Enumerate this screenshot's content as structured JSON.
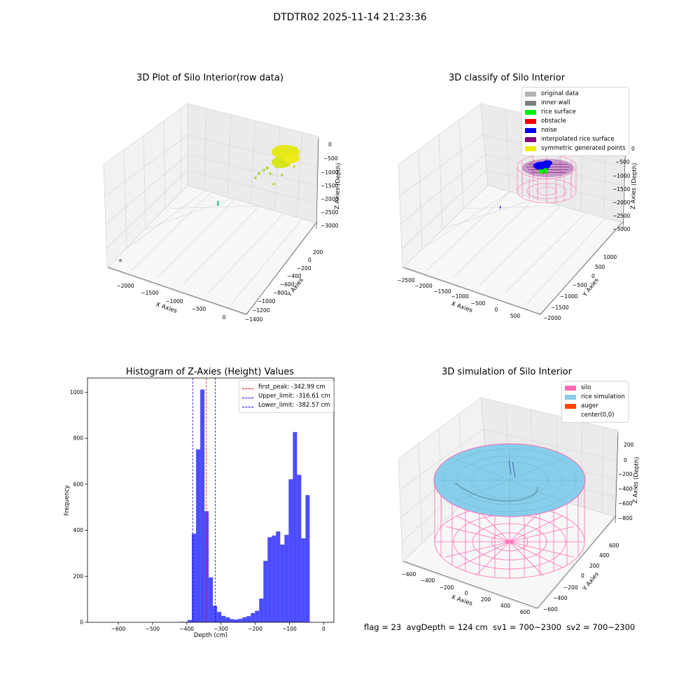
{
  "suptitle": "DTDTR02 2025-11-14 21:23:36",
  "chart_data": [
    {
      "type": "scatter",
      "title": "3D Plot of Silo Interior(row data)",
      "xlabel": "X Axies",
      "ylabel": "Y Axies",
      "zlabel": "Z Axies (Depth)",
      "x_ticks": [
        "−2000",
        "−1500",
        "−1000",
        "−500",
        "0"
      ],
      "y_ticks": [
        "200",
        "0",
        "−200",
        "−400",
        "−600",
        "−800",
        "−1000",
        "−1200",
        "−1400"
      ],
      "z_ticks": [
        "0",
        "−500",
        "−1000",
        "−1500",
        "−2000",
        "−2500",
        "−3000"
      ],
      "xlim": [
        -2300,
        100
      ],
      "ylim": [
        -1400,
        300
      ],
      "zlim": [
        -3300,
        100
      ],
      "point_clusters": [
        {
          "description": "dense surface cluster",
          "x": [
            -50,
            60
          ],
          "y": [
            -300,
            150
          ],
          "z": [
            -150,
            -800
          ],
          "color": "#e8e817"
        },
        {
          "description": "scattered points",
          "x": [
            -200,
            0
          ],
          "y": [
            -800,
            -200
          ],
          "z": [
            -500,
            -1600
          ],
          "color": "#a9dc36"
        },
        {
          "description": "small cluster",
          "x": [
            -1000,
            -950
          ],
          "y": [
            -1200,
            -1100
          ],
          "z": [
            -2100,
            -2200
          ],
          "color": "#5ec79b"
        },
        {
          "description": "far point",
          "x": -2200,
          "y": -1300,
          "z": -3000,
          "color": "#808080"
        }
      ]
    },
    {
      "type": "scatter",
      "title": "3D classify of Silo Interior",
      "xlabel": "X Axies",
      "ylabel": "Y Axies",
      "zlabel": "Z Axies (Depth)",
      "x_ticks": [
        "−2500",
        "−2000",
        "−1500",
        "−1000",
        "−500",
        "0",
        "500"
      ],
      "y_ticks": [
        "1000",
        "500",
        "0",
        "−500",
        "−1000",
        "−1500",
        "−2000"
      ],
      "z_ticks": [
        "0",
        "−500",
        "−1000",
        "−1500",
        "−2000",
        "−2500",
        "−3000"
      ],
      "legend": [
        {
          "label": "original data",
          "color": "#b3b3b3"
        },
        {
          "label": "inner wall",
          "color": "#808080"
        },
        {
          "label": "rice surface",
          "color": "#00ee00"
        },
        {
          "label": "obstacle",
          "color": "#ee0000"
        },
        {
          "label": "noise",
          "color": "#0000ee"
        },
        {
          "label": "interpolated rice surface",
          "color": "#800080"
        },
        {
          "label": "symmetric generated points",
          "color": "#eeee00"
        }
      ]
    },
    {
      "type": "bar",
      "title": "Histogram of Z-Axies (Height) Values",
      "xlabel": "Depth (cm)",
      "ylabel": "Frequency",
      "xlim": [
        -690,
        30
      ],
      "ylim": [
        0,
        1062
      ],
      "x_ticks": [
        -600,
        -500,
        -400,
        -300,
        -200,
        -100,
        0
      ],
      "x_tick_labels": [
        "−600",
        "−500",
        "−400",
        "−300",
        "−200",
        "−100",
        "0"
      ],
      "y_ticks": [
        0,
        200,
        400,
        600,
        800,
        1000
      ],
      "bin_width": 12.3,
      "bins": [
        {
          "x0": -422,
          "value": 2
        },
        {
          "x0": -409.7,
          "value": 2
        },
        {
          "x0": -397.4,
          "value": 10
        },
        {
          "x0": -385.1,
          "value": 385
        },
        {
          "x0": -372.8,
          "value": 752
        },
        {
          "x0": -360.5,
          "value": 1012
        },
        {
          "x0": -348.2,
          "value": 483
        },
        {
          "x0": -335.9,
          "value": 195
        },
        {
          "x0": -323.6,
          "value": 72
        },
        {
          "x0": -311.3,
          "value": 45
        },
        {
          "x0": -299.0,
          "value": 28
        },
        {
          "x0": -286.7,
          "value": 22
        },
        {
          "x0": -274.4,
          "value": 14
        },
        {
          "x0": -262.1,
          "value": 12
        },
        {
          "x0": -249.8,
          "value": 15
        },
        {
          "x0": -237.5,
          "value": 22
        },
        {
          "x0": -225.2,
          "value": 27
        },
        {
          "x0": -212.9,
          "value": 40
        },
        {
          "x0": -200.6,
          "value": 50
        },
        {
          "x0": -188.3,
          "value": 103
        },
        {
          "x0": -176.0,
          "value": 267
        },
        {
          "x0": -163.7,
          "value": 370
        },
        {
          "x0": -151.4,
          "value": 377
        },
        {
          "x0": -139.1,
          "value": 395
        },
        {
          "x0": -126.8,
          "value": 338
        },
        {
          "x0": -114.5,
          "value": 380
        },
        {
          "x0": -102.2,
          "value": 622
        },
        {
          "x0": -89.9,
          "value": 827
        },
        {
          "x0": -77.6,
          "value": 641
        },
        {
          "x0": -65.3,
          "value": 365
        },
        {
          "x0": -53.0,
          "value": 553
        }
      ],
      "bar_color": "#0000ff",
      "bar_alpha": 0.7,
      "vlines": [
        {
          "label": "first_peak: -342.99 cm",
          "x": -342.99,
          "color": "#ff0000"
        },
        {
          "label": "Upper_limit: -316.61 cm",
          "x": -316.61,
          "color": "#0000ff"
        },
        {
          "label": "Lower_limit: -382.57 cm",
          "x": -382.57,
          "color": "#0000ff"
        }
      ]
    },
    {
      "type": "scatter",
      "title": "3D simulation of Silo Interior",
      "xlabel": "X Axies",
      "ylabel": "Y Axies",
      "zlabel": "Z Axies (Depth)",
      "x_ticks": [
        "−600",
        "−400",
        "−200",
        "0",
        "200",
        "400",
        "600"
      ],
      "y_ticks": [
        "600",
        "400",
        "200",
        "0",
        "−200",
        "−400",
        "−600"
      ],
      "z_ticks": [
        "200",
        "0",
        "−200",
        "−400",
        "−600",
        "−800"
      ],
      "legend": [
        {
          "label": "silo",
          "color": "#ff69b4"
        },
        {
          "label": "rice simulation",
          "color": "#87ceeb"
        },
        {
          "label": "auger",
          "color": "#ff4500"
        },
        {
          "label": "center(0,0)",
          "color": ""
        }
      ]
    }
  ],
  "status": {
    "flag": "flag = 23",
    "avg_depth": "avgDepth = 124 cm",
    "sv1": "sv1 = 700~2300",
    "sv2": "sv2 = 700~2300"
  }
}
